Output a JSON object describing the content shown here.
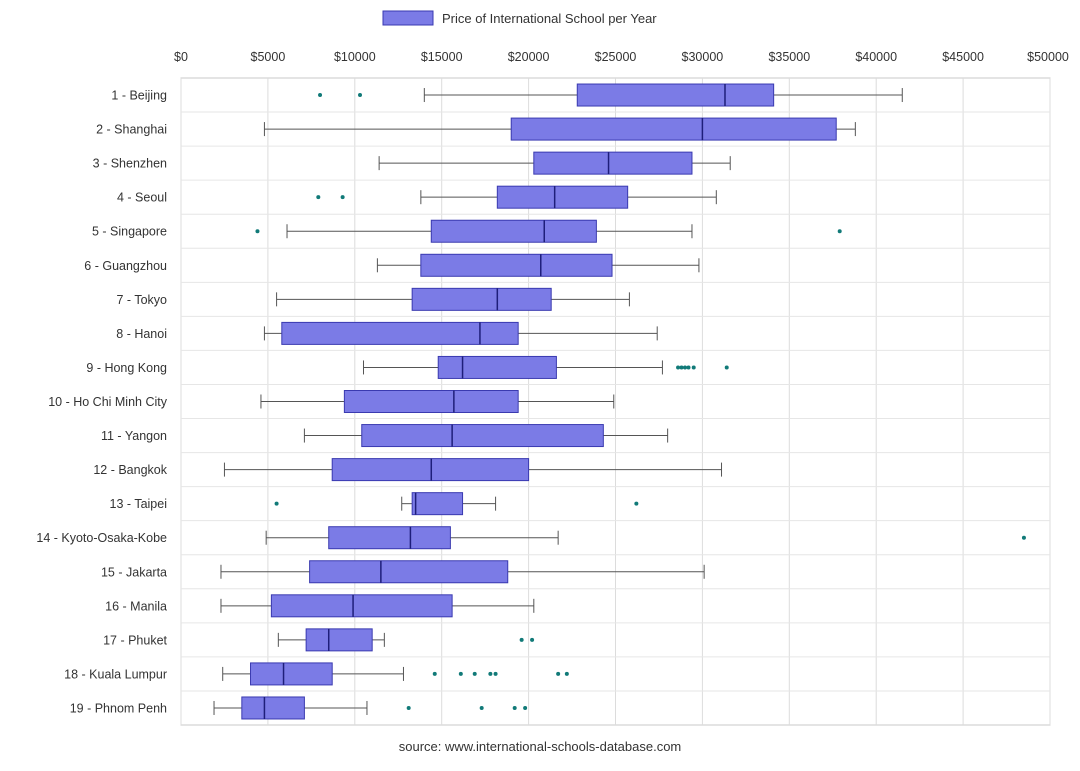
{
  "chart_data": {
    "type": "boxplot",
    "title": "",
    "legend": {
      "label": "Price of International School per Year",
      "color": "#7b7be6",
      "placement": "top"
    },
    "source": "source: www.international-schools-database.com",
    "x_axis": {
      "min": 0,
      "max": 50000,
      "ticks": [
        0,
        5000,
        10000,
        15000,
        20000,
        25000,
        30000,
        35000,
        40000,
        45000,
        50000
      ],
      "tick_labels": [
        "$0",
        "$5000",
        "$10000",
        "$15000",
        "$20000",
        "$25000",
        "$30000",
        "$35000",
        "$40000",
        "$45000",
        "$50000"
      ],
      "position": "top"
    },
    "grid": true,
    "box_color": "#7b7be6",
    "box_edge": "#3a3ab0",
    "outlier_color": "#117a78",
    "categories": [
      "1 - Beijing",
      "2 - Shanghai",
      "3 - Shenzhen",
      "4 - Seoul",
      "5 - Singapore",
      "6 - Guangzhou",
      "7 - Tokyo",
      "8 - Hanoi",
      "9 - Hong Kong",
      "10 - Ho Chi Minh City",
      "11 - Yangon",
      "12 - Bangkok",
      "13 - Taipei",
      "14 - Kyoto-Osaka-Kobe",
      "15 - Jakarta",
      "16 - Manila",
      "17 - Phuket",
      "18 - Kuala Lumpur",
      "19 - Phnom Penh"
    ],
    "boxes": [
      {
        "whisker_low": 14000,
        "q1": 22800,
        "median": 31300,
        "q3": 34100,
        "whisker_high": 41500,
        "outliers": [
          8000,
          10300
        ]
      },
      {
        "whisker_low": 4800,
        "q1": 19000,
        "median": 30000,
        "q3": 37700,
        "whisker_high": 38800,
        "outliers": []
      },
      {
        "whisker_low": 11400,
        "q1": 20300,
        "median": 24600,
        "q3": 29400,
        "whisker_high": 31600,
        "outliers": []
      },
      {
        "whisker_low": 13800,
        "q1": 18200,
        "median": 21500,
        "q3": 25700,
        "whisker_high": 30800,
        "outliers": [
          7900,
          9300
        ]
      },
      {
        "whisker_low": 6100,
        "q1": 14400,
        "median": 20900,
        "q3": 23900,
        "whisker_high": 29400,
        "outliers": [
          4400,
          37900
        ]
      },
      {
        "whisker_low": 11300,
        "q1": 13800,
        "median": 20700,
        "q3": 24800,
        "whisker_high": 29800,
        "outliers": []
      },
      {
        "whisker_low": 5500,
        "q1": 13300,
        "median": 18200,
        "q3": 21300,
        "whisker_high": 25800,
        "outliers": []
      },
      {
        "whisker_low": 4800,
        "q1": 5800,
        "median": 17200,
        "q3": 19400,
        "whisker_high": 27400,
        "outliers": []
      },
      {
        "whisker_low": 10500,
        "q1": 14800,
        "median": 16200,
        "q3": 21600,
        "whisker_high": 27700,
        "outliers": [
          28600,
          28800,
          29000,
          29200,
          29500,
          31400
        ]
      },
      {
        "whisker_low": 4600,
        "q1": 9400,
        "median": 15700,
        "q3": 19400,
        "whisker_high": 24900,
        "outliers": []
      },
      {
        "whisker_low": 7100,
        "q1": 10400,
        "median": 15600,
        "q3": 24300,
        "whisker_high": 28000,
        "outliers": []
      },
      {
        "whisker_low": 2500,
        "q1": 8700,
        "median": 14400,
        "q3": 20000,
        "whisker_high": 31100,
        "outliers": []
      },
      {
        "whisker_low": 12700,
        "q1": 13300,
        "median": 13500,
        "q3": 16200,
        "whisker_high": 18100,
        "outliers": [
          5500,
          26200
        ]
      },
      {
        "whisker_low": 4900,
        "q1": 8500,
        "median": 13200,
        "q3": 15500,
        "whisker_high": 21700,
        "outliers": [
          48500
        ]
      },
      {
        "whisker_low": 2300,
        "q1": 7400,
        "median": 11500,
        "q3": 18800,
        "whisker_high": 30100,
        "outliers": []
      },
      {
        "whisker_low": 2300,
        "q1": 5200,
        "median": 9900,
        "q3": 15600,
        "whisker_high": 20300,
        "outliers": []
      },
      {
        "whisker_low": 5600,
        "q1": 7200,
        "median": 8500,
        "q3": 11000,
        "whisker_high": 11700,
        "outliers": [
          19600,
          20200
        ]
      },
      {
        "whisker_low": 2400,
        "q1": 4000,
        "median": 5900,
        "q3": 8700,
        "whisker_high": 12800,
        "outliers": [
          14600,
          16100,
          16900,
          17800,
          18100,
          21700,
          22200
        ]
      },
      {
        "whisker_low": 1900,
        "q1": 3500,
        "median": 4800,
        "q3": 7100,
        "whisker_high": 10700,
        "outliers": [
          13100,
          17300,
          19200,
          19800
        ]
      }
    ]
  }
}
